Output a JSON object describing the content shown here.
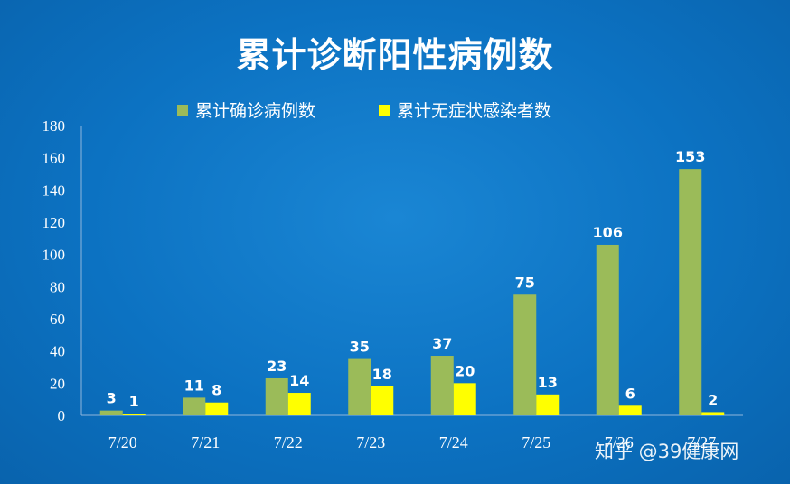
{
  "chart_data": {
    "type": "bar",
    "title": "累计诊断阳性病例数",
    "categories": [
      "7/20",
      "7/21",
      "7/22",
      "7/23",
      "7/24",
      "7/25",
      "7/26",
      "7/27"
    ],
    "series": [
      {
        "name": "累计确诊病例数",
        "values": [
          3,
          11,
          23,
          35,
          37,
          75,
          106,
          153
        ],
        "color": "#9bbb59"
      },
      {
        "name": "累计无症状感染者数",
        "values": [
          1,
          8,
          14,
          18,
          20,
          13,
          6,
          2
        ],
        "color": "#ffff00"
      }
    ],
    "ylim": [
      0,
      180
    ],
    "yticks": [
      0,
      20,
      40,
      60,
      80,
      100,
      120,
      140,
      160,
      180
    ],
    "xlabel": "",
    "ylabel": "",
    "legend_position": "top",
    "grid": false
  },
  "watermark": "知乎 @39健康网"
}
